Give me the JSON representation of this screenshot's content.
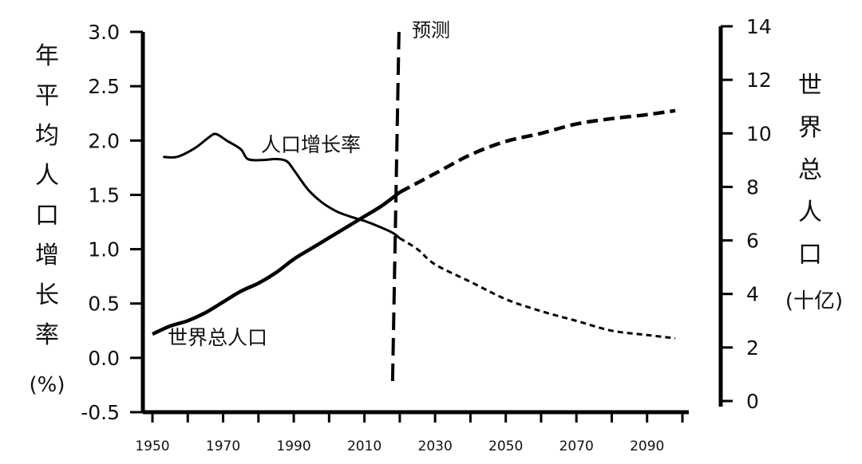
{
  "chart_data": {
    "type": "line",
    "title": "",
    "x_ticks": [
      "1950",
      "1970",
      "1990",
      "2010",
      "2030",
      "2050",
      "2070",
      "2090"
    ],
    "xlim": [
      1950,
      2100
    ],
    "left_axis": {
      "label_chars": [
        "年",
        "平",
        "均",
        "人",
        "口",
        "增",
        "长",
        "率"
      ],
      "unit": "(%)",
      "ylim": [
        -0.5,
        3.0
      ],
      "ticks": [
        "3.0",
        "2.5",
        "2.0",
        "1.5",
        "1.0",
        "0.5",
        "0.0",
        "-0.5"
      ]
    },
    "right_axis": {
      "label_chars": [
        "世",
        "界",
        "总",
        "人",
        "口"
      ],
      "unit": "(十亿)",
      "ylim": [
        0,
        14
      ],
      "ticks": [
        "14",
        "12",
        "10",
        "8",
        "6",
        "4",
        "2",
        "0"
      ]
    },
    "forecast_line": {
      "label": "预测",
      "year": 2020
    },
    "series": [
      {
        "name": "人口增长率",
        "axis": "left",
        "observed": [
          {
            "x": 1953,
            "y": 1.85
          },
          {
            "x": 1957,
            "y": 1.85
          },
          {
            "x": 1962,
            "y": 1.93
          },
          {
            "x": 1966,
            "y": 2.03
          },
          {
            "x": 1968,
            "y": 2.06
          },
          {
            "x": 1971,
            "y": 2.0
          },
          {
            "x": 1975,
            "y": 1.92
          },
          {
            "x": 1977,
            "y": 1.83
          },
          {
            "x": 1981,
            "y": 1.82
          },
          {
            "x": 1985,
            "y": 1.83
          },
          {
            "x": 1988,
            "y": 1.81
          },
          {
            "x": 1990,
            "y": 1.73
          },
          {
            "x": 1994,
            "y": 1.55
          },
          {
            "x": 1998,
            "y": 1.43
          },
          {
            "x": 2002,
            "y": 1.35
          },
          {
            "x": 2006,
            "y": 1.3
          },
          {
            "x": 2010,
            "y": 1.26
          },
          {
            "x": 2014,
            "y": 1.21
          },
          {
            "x": 2018,
            "y": 1.15
          },
          {
            "x": 2020,
            "y": 1.1
          }
        ],
        "projected": [
          {
            "x": 2020,
            "y": 1.1
          },
          {
            "x": 2025,
            "y": 1.0
          },
          {
            "x": 2030,
            "y": 0.86
          },
          {
            "x": 2040,
            "y": 0.7
          },
          {
            "x": 2050,
            "y": 0.54
          },
          {
            "x": 2060,
            "y": 0.43
          },
          {
            "x": 2070,
            "y": 0.34
          },
          {
            "x": 2080,
            "y": 0.25
          },
          {
            "x": 2090,
            "y": 0.21
          },
          {
            "x": 2098,
            "y": 0.18
          }
        ]
      },
      {
        "name": "世界总人口",
        "axis": "right",
        "observed": [
          {
            "x": 1950,
            "y": 2.5
          },
          {
            "x": 1955,
            "y": 2.8
          },
          {
            "x": 1960,
            "y": 3.0
          },
          {
            "x": 1965,
            "y": 3.3
          },
          {
            "x": 1970,
            "y": 3.7
          },
          {
            "x": 1975,
            "y": 4.1
          },
          {
            "x": 1980,
            "y": 4.4
          },
          {
            "x": 1985,
            "y": 4.8
          },
          {
            "x": 1990,
            "y": 5.3
          },
          {
            "x": 1995,
            "y": 5.7
          },
          {
            "x": 2000,
            "y": 6.1
          },
          {
            "x": 2005,
            "y": 6.5
          },
          {
            "x": 2010,
            "y": 6.9
          },
          {
            "x": 2015,
            "y": 7.3
          },
          {
            "x": 2020,
            "y": 7.8
          }
        ],
        "projected": [
          {
            "x": 2020,
            "y": 7.8
          },
          {
            "x": 2030,
            "y": 8.5
          },
          {
            "x": 2040,
            "y": 9.2
          },
          {
            "x": 2050,
            "y": 9.7
          },
          {
            "x": 2060,
            "y": 10.0
          },
          {
            "x": 2070,
            "y": 10.35
          },
          {
            "x": 2080,
            "y": 10.55
          },
          {
            "x": 2090,
            "y": 10.7
          },
          {
            "x": 2098,
            "y": 10.85
          }
        ]
      }
    ]
  }
}
